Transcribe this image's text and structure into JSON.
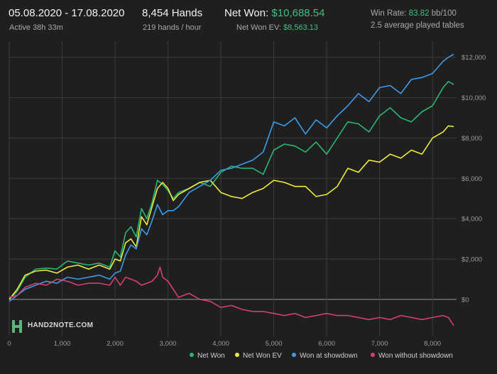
{
  "header": {
    "date_range": "05.08.2020 - 17.08.2020",
    "active": "Active 38h 33m",
    "hands": "8,454 Hands",
    "hands_per_hour": "219 hands / hour",
    "net_won_label": "Net Won:",
    "net_won_value": "$10,688.54",
    "net_won_ev_label": "Net Won  EV:",
    "net_won_ev_value": "$8,563.13",
    "win_rate_label": "Win Rate:",
    "win_rate_value": "83.82",
    "win_rate_unit": "bb/100",
    "tables": "2.5 average played tables"
  },
  "logo": {
    "text": "HAND2NOTE.COM"
  },
  "colors": {
    "net_won": "#2bb673",
    "net_won_ev": "#ecec3c",
    "won_at_showdown": "#3f9be6",
    "won_without_showdown": "#d63f72",
    "grid": "#3c3c3c",
    "zero_line": "#9a9a9a",
    "axis_text": "#9c9c9c"
  },
  "chart_data": {
    "type": "line",
    "xlim": [
      0,
      8454
    ],
    "ylim": [
      -1800,
      12800
    ],
    "x_ticks": [
      0,
      1000,
      2000,
      3000,
      4000,
      5000,
      6000,
      7000,
      8000
    ],
    "x_tick_labels": [
      "0",
      "1,000",
      "2,000",
      "3,000",
      "4,000",
      "5,000",
      "6,000",
      "7,000",
      "8,000"
    ],
    "y_ticks": [
      0,
      2000,
      4000,
      6000,
      8000,
      10000,
      12000
    ],
    "y_tick_labels": [
      "$0",
      "$2,000",
      "$4,000",
      "$6,000",
      "$8,000",
      "$10,000",
      "$12,000"
    ],
    "grid": true,
    "legend_position": "bottom-right",
    "series": [
      {
        "name": "Net Won",
        "color": "#2bb673",
        "x": [
          0,
          150,
          300,
          500,
          700,
          900,
          1100,
          1300,
          1500,
          1700,
          1900,
          2000,
          2100,
          2200,
          2300,
          2400,
          2500,
          2600,
          2700,
          2800,
          2900,
          3000,
          3100,
          3200,
          3400,
          3600,
          3800,
          4000,
          4200,
          4400,
          4600,
          4800,
          5000,
          5200,
          5400,
          5600,
          5800,
          6000,
          6200,
          6400,
          6600,
          6800,
          7000,
          7200,
          7400,
          7600,
          7800,
          8000,
          8200,
          8300,
          8400
        ],
        "values": [
          0,
          400,
          1100,
          1500,
          1550,
          1500,
          1900,
          1800,
          1700,
          1800,
          1600,
          2400,
          2100,
          3300,
          3600,
          3100,
          4500,
          4000,
          4800,
          5900,
          5700,
          5400,
          5000,
          5300,
          5500,
          5800,
          5600,
          6300,
          6600,
          6500,
          6500,
          6200,
          7400,
          7700,
          7600,
          7300,
          7800,
          7200,
          8000,
          8800,
          8700,
          8300,
          9100,
          9500,
          9000,
          8800,
          9300,
          9600,
          10500,
          10800,
          10650
        ]
      },
      {
        "name": "Net Won  EV",
        "color": "#ecec3c",
        "x": [
          0,
          150,
          300,
          500,
          700,
          900,
          1100,
          1300,
          1500,
          1700,
          1900,
          2000,
          2100,
          2200,
          2300,
          2400,
          2500,
          2600,
          2700,
          2800,
          2900,
          3000,
          3100,
          3200,
          3400,
          3600,
          3800,
          4000,
          4200,
          4400,
          4600,
          4800,
          5000,
          5200,
          5400,
          5600,
          5800,
          6000,
          6200,
          6400,
          6600,
          6800,
          7000,
          7200,
          7400,
          7600,
          7800,
          8000,
          8200,
          8300,
          8400
        ],
        "values": [
          0,
          500,
          1200,
          1400,
          1450,
          1300,
          1600,
          1700,
          1500,
          1700,
          1500,
          2000,
          1900,
          2800,
          3000,
          2600,
          4100,
          3700,
          4600,
          5500,
          5800,
          5500,
          4900,
          5200,
          5500,
          5800,
          5900,
          5300,
          5100,
          5000,
          5300,
          5500,
          5900,
          5800,
          5600,
          5600,
          5100,
          5200,
          5600,
          6500,
          6300,
          6900,
          6800,
          7200,
          7000,
          7400,
          7200,
          8000,
          8300,
          8600,
          8563
        ]
      },
      {
        "name": "Won at showdown",
        "color": "#3f9be6",
        "x": [
          0,
          150,
          300,
          500,
          700,
          900,
          1100,
          1300,
          1500,
          1700,
          1900,
          2000,
          2100,
          2200,
          2300,
          2400,
          2500,
          2600,
          2700,
          2800,
          2900,
          3000,
          3100,
          3200,
          3400,
          3600,
          3800,
          4000,
          4200,
          4400,
          4600,
          4800,
          5000,
          5200,
          5400,
          5600,
          5800,
          6000,
          6200,
          6400,
          6600,
          6800,
          7000,
          7200,
          7400,
          7600,
          7800,
          8000,
          8200,
          8300,
          8400
        ],
        "values": [
          -100,
          200,
          500,
          700,
          900,
          800,
          1100,
          1000,
          1100,
          1200,
          1000,
          1300,
          1400,
          2200,
          2700,
          2500,
          3500,
          3200,
          3900,
          4700,
          4200,
          4400,
          4400,
          4600,
          5300,
          5600,
          5900,
          6400,
          6500,
          6700,
          6900,
          7300,
          8800,
          8600,
          9000,
          8200,
          8900,
          8500,
          9100,
          9600,
          10200,
          9800,
          10500,
          10600,
          10200,
          10900,
          11000,
          11200,
          11800,
          12000,
          12150
        ]
      },
      {
        "name": "Won without showdown",
        "color": "#d63f72",
        "x": [
          0,
          150,
          300,
          500,
          700,
          900,
          1100,
          1300,
          1500,
          1700,
          1900,
          2000,
          2100,
          2200,
          2300,
          2400,
          2500,
          2600,
          2700,
          2800,
          2850,
          2900,
          3000,
          3100,
          3200,
          3400,
          3600,
          3800,
          4000,
          4200,
          4400,
          4600,
          4800,
          5000,
          5200,
          5400,
          5600,
          5800,
          6000,
          6200,
          6400,
          6600,
          6800,
          7000,
          7200,
          7400,
          7600,
          7800,
          8000,
          8200,
          8300,
          8400
        ],
        "values": [
          100,
          200,
          600,
          800,
          700,
          1000,
          900,
          700,
          800,
          800,
          700,
          1100,
          700,
          1100,
          1000,
          900,
          700,
          800,
          900,
          1200,
          1600,
          1100,
          900,
          500,
          100,
          300,
          0,
          -100,
          -400,
          -300,
          -500,
          -600,
          -600,
          -700,
          -800,
          -700,
          -900,
          -800,
          -700,
          -800,
          -800,
          -900,
          -1000,
          -900,
          -1000,
          -800,
          -900,
          -1000,
          -900,
          -800,
          -900,
          -1300
        ]
      }
    ]
  },
  "legend": {
    "items": [
      "Net Won",
      "Net Won  EV",
      "Won at showdown",
      "Won without showdown"
    ]
  }
}
